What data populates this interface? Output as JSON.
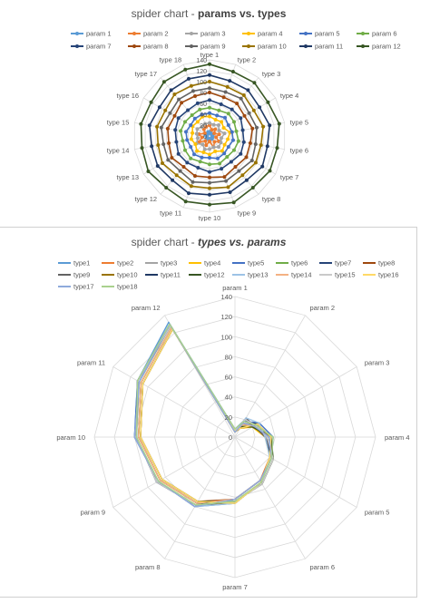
{
  "chart_data": [
    {
      "type": "radar",
      "title_main": "spider chart - ",
      "title_emph": "params vs. types",
      "axes": [
        "type 1",
        "type 2",
        "type 3",
        "type 4",
        "type 5",
        "type 6",
        "type 7",
        "type 8",
        "type 9",
        "type 10",
        "type 11",
        "type 12",
        "type 13",
        "type 14",
        "type 15",
        "type 16",
        "type 17",
        "type 18"
      ],
      "rlim": [
        0,
        140
      ],
      "ticks": [
        0,
        20,
        40,
        60,
        80,
        100,
        120,
        140
      ],
      "grid": true,
      "legend": "top",
      "series": [
        {
          "name": "param 1",
          "color": "#5b9bd5",
          "values": [
            8,
            6,
            5,
            7,
            6,
            5,
            6,
            7,
            6,
            5,
            6,
            7,
            6,
            5,
            7,
            6,
            5,
            8
          ]
        },
        {
          "name": "param 2",
          "color": "#ed7d31",
          "values": [
            20,
            12,
            16,
            10,
            18,
            12,
            20,
            14,
            22,
            10,
            18,
            12,
            22,
            14,
            20,
            10,
            16,
            18
          ]
        },
        {
          "name": "param 3",
          "color": "#a5a5a5",
          "values": [
            24,
            22,
            26,
            20,
            28,
            22,
            24,
            26,
            22,
            24,
            26,
            20,
            28,
            22,
            24,
            26,
            22,
            24
          ]
        },
        {
          "name": "param 4",
          "color": "#ffc000",
          "values": [
            36,
            32,
            34,
            30,
            38,
            34,
            32,
            36,
            30,
            34,
            32,
            36,
            30,
            34,
            32,
            36,
            34,
            38
          ]
        },
        {
          "name": "param 5",
          "color": "#4472c4",
          "values": [
            42,
            40,
            44,
            40,
            42,
            44,
            40,
            42,
            44,
            40,
            42,
            44,
            40,
            42,
            44,
            40,
            42,
            42
          ]
        },
        {
          "name": "param 6",
          "color": "#70ad47",
          "values": [
            52,
            50,
            54,
            52,
            50,
            54,
            52,
            50,
            54,
            52,
            50,
            54,
            52,
            50,
            54,
            52,
            50,
            52
          ]
        },
        {
          "name": "param 7",
          "color": "#264478",
          "values": [
            66,
            62,
            64,
            66,
            62,
            64,
            66,
            62,
            64,
            66,
            62,
            64,
            66,
            62,
            64,
            66,
            62,
            64
          ]
        },
        {
          "name": "param 8",
          "color": "#9e480e",
          "values": [
            80,
            76,
            78,
            74,
            80,
            76,
            78,
            74,
            80,
            76,
            78,
            74,
            80,
            76,
            78,
            74,
            80,
            78
          ]
        },
        {
          "name": "param 9",
          "color": "#636363",
          "values": [
            88,
            86,
            90,
            84,
            88,
            86,
            90,
            84,
            88,
            86,
            90,
            84,
            88,
            86,
            90,
            84,
            88,
            88
          ]
        },
        {
          "name": "param 10",
          "color": "#997300",
          "values": [
            100,
            96,
            98,
            94,
            100,
            96,
            98,
            94,
            100,
            96,
            98,
            94,
            100,
            96,
            98,
            94,
            100,
            98
          ]
        },
        {
          "name": "param 11",
          "color": "#1f3864",
          "values": [
            112,
            108,
            110,
            106,
            112,
            108,
            112,
            106,
            110,
            108,
            112,
            106,
            110,
            108,
            112,
            106,
            110,
            112
          ]
        },
        {
          "name": "param 12",
          "color": "#375623",
          "values": [
            132,
            126,
            128,
            124,
            130,
            126,
            128,
            124,
            130,
            126,
            128,
            124,
            130,
            126,
            128,
            124,
            130,
            130
          ]
        }
      ]
    },
    {
      "type": "radar",
      "title_main": "spider chart - ",
      "title_emph": "types vs. params",
      "axes": [
        "param 1",
        "param 2",
        "param 3",
        "param 4",
        "param 5",
        "param 6",
        "param 7",
        "param 8",
        "param 9",
        "param 10",
        "param 11",
        "param 12"
      ],
      "rlim": [
        0,
        140
      ],
      "ticks": [
        0,
        20,
        40,
        60,
        80,
        100,
        120,
        140
      ],
      "grid": true,
      "legend": "top",
      "series": [
        {
          "name": "type1",
          "color": "#5b9bd5",
          "values": [
            8,
            20,
            24,
            36,
            42,
            52,
            66,
            80,
            88,
            100,
            112,
            132
          ]
        },
        {
          "name": "type2",
          "color": "#ed7d31",
          "values": [
            6,
            12,
            22,
            32,
            40,
            50,
            62,
            76,
            86,
            96,
            108,
            126
          ]
        },
        {
          "name": "type3",
          "color": "#a5a5a5",
          "values": [
            5,
            16,
            26,
            34,
            44,
            54,
            64,
            78,
            90,
            98,
            110,
            128
          ]
        },
        {
          "name": "type4",
          "color": "#ffc000",
          "values": [
            7,
            10,
            20,
            30,
            40,
            52,
            66,
            74,
            84,
            94,
            106,
            124
          ]
        },
        {
          "name": "type5",
          "color": "#4472c4",
          "values": [
            6,
            18,
            28,
            38,
            42,
            50,
            62,
            80,
            88,
            100,
            112,
            130
          ]
        },
        {
          "name": "type6",
          "color": "#70ad47",
          "values": [
            5,
            12,
            22,
            34,
            44,
            54,
            64,
            76,
            86,
            96,
            108,
            126
          ]
        },
        {
          "name": "type7",
          "color": "#264478",
          "values": [
            6,
            20,
            24,
            32,
            40,
            52,
            66,
            78,
            90,
            98,
            112,
            128
          ]
        },
        {
          "name": "type8",
          "color": "#9e480e",
          "values": [
            7,
            14,
            26,
            36,
            42,
            50,
            62,
            74,
            84,
            94,
            106,
            124
          ]
        },
        {
          "name": "type9",
          "color": "#636363",
          "values": [
            6,
            22,
            22,
            30,
            44,
            54,
            64,
            80,
            88,
            100,
            110,
            130
          ]
        },
        {
          "name": "type10",
          "color": "#997300",
          "values": [
            5,
            10,
            24,
            34,
            40,
            52,
            66,
            76,
            86,
            96,
            108,
            126
          ]
        },
        {
          "name": "type11",
          "color": "#1f3864",
          "values": [
            6,
            18,
            26,
            32,
            42,
            50,
            62,
            78,
            90,
            98,
            112,
            128
          ]
        },
        {
          "name": "type12",
          "color": "#375623",
          "values": [
            7,
            12,
            20,
            36,
            44,
            54,
            64,
            74,
            84,
            94,
            106,
            124
          ]
        },
        {
          "name": "type13",
          "color": "#9dc3e6",
          "values": [
            6,
            22,
            28,
            30,
            40,
            52,
            66,
            80,
            88,
            100,
            110,
            130
          ]
        },
        {
          "name": "type14",
          "color": "#f4b183",
          "values": [
            5,
            14,
            22,
            34,
            42,
            50,
            62,
            76,
            86,
            96,
            108,
            126
          ]
        },
        {
          "name": "type15",
          "color": "#c9c9c9",
          "values": [
            7,
            20,
            24,
            32,
            44,
            54,
            64,
            78,
            90,
            98,
            112,
            128
          ]
        },
        {
          "name": "type16",
          "color": "#ffd966",
          "values": [
            6,
            10,
            26,
            36,
            40,
            52,
            66,
            74,
            84,
            94,
            106,
            124
          ]
        },
        {
          "name": "type17",
          "color": "#8faadc",
          "values": [
            5,
            16,
            22,
            34,
            42,
            50,
            62,
            80,
            88,
            100,
            110,
            130
          ]
        },
        {
          "name": "type18",
          "color": "#a9d18e",
          "values": [
            8,
            18,
            24,
            38,
            42,
            52,
            64,
            78,
            88,
            98,
            112,
            130
          ]
        }
      ]
    }
  ]
}
